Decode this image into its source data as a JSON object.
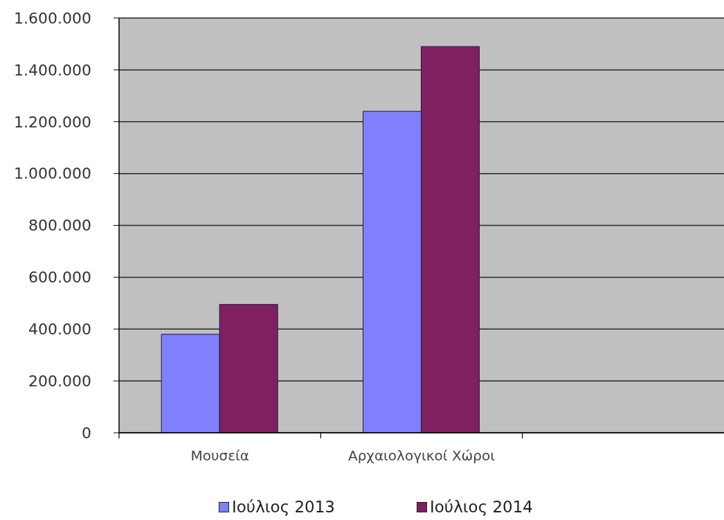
{
  "chart_data": {
    "type": "bar",
    "categories": [
      "Μουσεία",
      "Αρχαιολογικοί Χώροι",
      null
    ],
    "series": [
      {
        "name": "Ιούλιος 2013",
        "color": "#8080ff",
        "values": [
          380000,
          1240000,
          null
        ]
      },
      {
        "name": "Ιούλιος 2014",
        "color": "#802060",
        "values": [
          495000,
          1490000,
          null
        ]
      }
    ],
    "ylim": [
      0,
      1600000
    ],
    "yticks": [
      {
        "value": 0,
        "label": "0"
      },
      {
        "value": 200000,
        "label": "200.000"
      },
      {
        "value": 400000,
        "label": "400.000"
      },
      {
        "value": 600000,
        "label": "600.000"
      },
      {
        "value": 800000,
        "label": "800.000"
      },
      {
        "value": 1000000,
        "label": "1.000.000"
      },
      {
        "value": 1200000,
        "label": "1.200.000"
      },
      {
        "value": 1400000,
        "label": "1.400.000"
      },
      {
        "value": 1600000,
        "label": "1.600.000"
      }
    ],
    "grid": "y",
    "legend": "bottom"
  }
}
